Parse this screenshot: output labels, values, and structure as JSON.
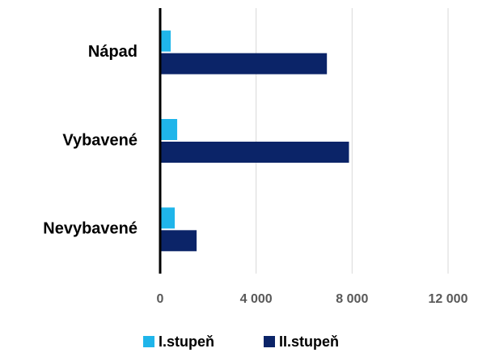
{
  "chart_data": {
    "type": "hbar",
    "categories": [
      "Nápad",
      "Vybavené",
      "Nevybavené"
    ],
    "series": [
      {
        "name": "I.stupeň",
        "color": "#1fb5ea",
        "values": [
          440,
          710,
          610
        ]
      },
      {
        "name": "II.stupeň",
        "color": "#0b2468",
        "values": [
          6950,
          7870,
          1520
        ]
      }
    ],
    "xlim": [
      0,
      12000
    ],
    "xticks": [
      0,
      {
        "value": 4000,
        "label": "4 000"
      },
      {
        "value": 8000,
        "label": "8 000"
      },
      {
        "value": 12000,
        "label": "12 000"
      }
    ],
    "grid": true,
    "legend": "bottom"
  }
}
